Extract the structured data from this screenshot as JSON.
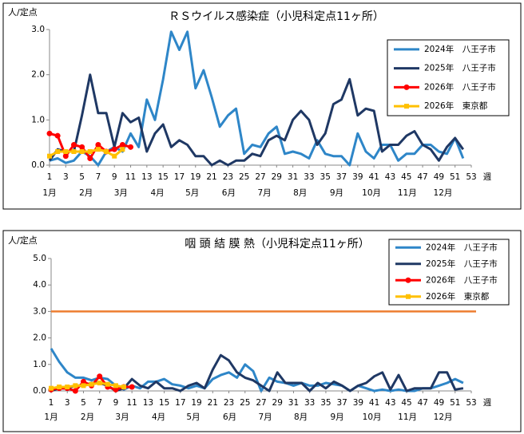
{
  "chart_data": [
    {
      "type": "line",
      "title": "ＲＳウイルス感染症（小児科定点11ヶ所）",
      "y_label": "人/定点",
      "x_label": "週",
      "x": [
        1,
        2,
        3,
        4,
        5,
        6,
        7,
        8,
        9,
        10,
        11,
        12,
        13,
        14,
        15,
        16,
        17,
        18,
        19,
        20,
        21,
        22,
        23,
        24,
        25,
        26,
        27,
        28,
        29,
        30,
        31,
        32,
        33,
        34,
        35,
        36,
        37,
        38,
        39,
        40,
        41,
        42,
        43,
        44,
        45,
        46,
        47,
        48,
        49,
        50,
        51,
        52
      ],
      "xlim": [
        1,
        53
      ],
      "xticks": [
        1,
        3,
        5,
        7,
        9,
        11,
        13,
        15,
        17,
        19,
        21,
        23,
        25,
        27,
        29,
        31,
        33,
        35,
        37,
        39,
        41,
        43,
        45,
        47,
        49,
        51,
        53
      ],
      "month_ticks": [
        {
          "value": 1,
          "label": "1月"
        },
        {
          "value": 5.5,
          "label": "2月"
        },
        {
          "value": 9.8,
          "label": "3月"
        },
        {
          "value": 14.3,
          "label": "4月"
        },
        {
          "value": 18.6,
          "label": "5月"
        },
        {
          "value": 23.1,
          "label": "6月"
        },
        {
          "value": 27.5,
          "label": "7月"
        },
        {
          "value": 31.9,
          "label": "8月"
        },
        {
          "value": 36.4,
          "label": "9月"
        },
        {
          "value": 40.7,
          "label": "10月"
        },
        {
          "value": 45.1,
          "label": "11月"
        },
        {
          "value": 49.5,
          "label": "12月"
        }
      ],
      "ylim": [
        0,
        3
      ],
      "yticks": [
        {
          "value": 0,
          "label": "0.0"
        },
        {
          "value": 1,
          "label": "1.0"
        },
        {
          "value": 2,
          "label": "2.0"
        },
        {
          "value": 3,
          "label": "3.0"
        }
      ],
      "legend": "upper right",
      "series": [
        {
          "name": "2024年　八王子市",
          "color": "#2e86c8",
          "values": [
            0.1,
            0.15,
            0.05,
            0.1,
            0.3,
            0.2,
            0.0,
            0.3,
            0.4,
            0.3,
            0.7,
            0.4,
            1.45,
            1.0,
            1.9,
            2.95,
            2.55,
            2.95,
            1.7,
            2.1,
            1.5,
            0.85,
            1.1,
            1.25,
            0.25,
            0.45,
            0.4,
            0.7,
            0.85,
            0.25,
            0.3,
            0.25,
            0.15,
            0.55,
            0.25,
            0.2,
            0.2,
            0.0,
            0.7,
            0.3,
            0.15,
            0.45,
            0.45,
            0.1,
            0.25,
            0.25,
            0.45,
            0.45,
            0.3,
            0.25,
            0.6,
            0.15
          ]
        },
        {
          "name": "2025年　八王子市",
          "color": "#1f3864",
          "values": [
            0.1,
            0.35,
            0.3,
            0.3,
            1.1,
            2.0,
            1.15,
            1.15,
            0.4,
            1.15,
            0.95,
            1.05,
            0.3,
            0.7,
            0.9,
            0.4,
            0.55,
            0.45,
            0.2,
            0.2,
            0.0,
            0.1,
            0.0,
            0.1,
            0.1,
            0.25,
            0.2,
            0.55,
            0.65,
            0.55,
            1.0,
            1.2,
            1.0,
            0.45,
            0.7,
            1.35,
            1.45,
            1.9,
            1.1,
            1.25,
            1.2,
            0.3,
            0.45,
            0.45,
            0.65,
            0.75,
            0.45,
            0.35,
            0.1,
            0.4,
            0.6,
            0.35
          ]
        },
        {
          "name": "2026年　八王子市",
          "color": "#ff0000",
          "marker": "circle",
          "values": [
            0.7,
            0.65,
            0.2,
            0.45,
            0.4,
            0.15,
            0.45,
            0.3,
            0.35,
            0.45,
            0.4,
            null,
            null,
            null,
            null,
            null,
            null,
            null,
            null,
            null,
            null,
            null,
            null,
            null,
            null,
            null,
            null,
            null,
            null,
            null,
            null,
            null,
            null,
            null,
            null,
            null,
            null,
            null,
            null,
            null,
            null,
            null,
            null,
            null,
            null,
            null,
            null,
            null,
            null,
            null,
            null,
            null
          ]
        },
        {
          "name": "2026年　東京都",
          "color": "#ffc000",
          "marker": "square",
          "values": [
            0.2,
            0.3,
            0.3,
            0.3,
            0.3,
            0.3,
            0.35,
            0.3,
            0.2,
            0.35,
            null,
            null,
            null,
            null,
            null,
            null,
            null,
            null,
            null,
            null,
            null,
            null,
            null,
            null,
            null,
            null,
            null,
            null,
            null,
            null,
            null,
            null,
            null,
            null,
            null,
            null,
            null,
            null,
            null,
            null,
            null,
            null,
            null,
            null,
            null,
            null,
            null,
            null,
            null,
            null,
            null,
            null
          ]
        }
      ]
    },
    {
      "type": "line",
      "title": "咽 頭 結 膜 熱（小児科定点11ヶ所）",
      "y_label": "人/定点",
      "x_label": "週",
      "x": [
        1,
        2,
        3,
        4,
        5,
        6,
        7,
        8,
        9,
        10,
        11,
        12,
        13,
        14,
        15,
        16,
        17,
        18,
        19,
        20,
        21,
        22,
        23,
        24,
        25,
        26,
        27,
        28,
        29,
        30,
        31,
        32,
        33,
        34,
        35,
        36,
        37,
        38,
        39,
        40,
        41,
        42,
        43,
        44,
        45,
        46,
        47,
        48,
        49,
        50,
        51,
        52
      ],
      "xlim": [
        1,
        53
      ],
      "xticks": [
        1,
        3,
        5,
        7,
        9,
        11,
        13,
        15,
        17,
        19,
        21,
        23,
        25,
        27,
        29,
        31,
        33,
        35,
        37,
        39,
        41,
        43,
        45,
        47,
        49,
        51,
        53
      ],
      "month_ticks": [
        {
          "value": 1,
          "label": "1月"
        },
        {
          "value": 5.5,
          "label": "2月"
        },
        {
          "value": 9.8,
          "label": "3月"
        },
        {
          "value": 14.3,
          "label": "4月"
        },
        {
          "value": 18.6,
          "label": "5月"
        },
        {
          "value": 23.1,
          "label": "6月"
        },
        {
          "value": 27.5,
          "label": "7月"
        },
        {
          "value": 31.9,
          "label": "8月"
        },
        {
          "value": 36.4,
          "label": "9月"
        },
        {
          "value": 40.7,
          "label": "10月"
        },
        {
          "value": 45.1,
          "label": "11月"
        },
        {
          "value": 49.5,
          "label": "12月"
        }
      ],
      "ylim": [
        0,
        5
      ],
      "yticks": [
        {
          "value": 0,
          "label": "0.0"
        },
        {
          "value": 1,
          "label": "1.0"
        },
        {
          "value": 2,
          "label": "2.0"
        },
        {
          "value": 3,
          "label": "3.0"
        },
        {
          "value": 4,
          "label": "4.0"
        },
        {
          "value": 5,
          "label": "5.0"
        }
      ],
      "reference_line": {
        "value": 3,
        "color": "#ed7d31"
      },
      "legend": "upper right",
      "series": [
        {
          "name": "2024年　八王子市",
          "color": "#2e86c8",
          "values": [
            1.6,
            1.1,
            0.7,
            0.5,
            0.5,
            0.4,
            0.5,
            0.45,
            0.2,
            0.05,
            0.2,
            0.1,
            0.35,
            0.35,
            0.45,
            0.25,
            0.2,
            0.1,
            0.2,
            0.1,
            0.45,
            0.6,
            0.7,
            0.5,
            1.0,
            0.75,
            0.0,
            0.5,
            0.35,
            0.3,
            0.2,
            0.3,
            0.2,
            0.2,
            0.3,
            0.25,
            0.2,
            0.0,
            0.2,
            0.1,
            0.0,
            0.05,
            0.0,
            0.05,
            0.0,
            0.0,
            0.1,
            0.1,
            0.2,
            0.3,
            0.45,
            0.3
          ]
        },
        {
          "name": "2025年　八王子市",
          "color": "#1f3864",
          "values": [
            0.0,
            0.1,
            0.1,
            0.2,
            0.2,
            0.3,
            0.3,
            0.2,
            0.0,
            0.1,
            0.45,
            0.2,
            0.1,
            0.35,
            0.1,
            0.1,
            0.0,
            0.2,
            0.3,
            0.1,
            0.8,
            1.35,
            1.15,
            0.7,
            0.5,
            0.4,
            0.2,
            0.0,
            0.7,
            0.3,
            0.3,
            0.3,
            0.0,
            0.3,
            0.1,
            0.35,
            0.2,
            0.0,
            0.2,
            0.3,
            0.55,
            0.7,
            0.05,
            0.6,
            0.0,
            0.1,
            0.1,
            0.1,
            0.7,
            0.7,
            0.05,
            0.1
          ]
        },
        {
          "name": "2026年　八王子市",
          "color": "#ff0000",
          "marker": "circle",
          "values": [
            0.05,
            0.1,
            0.1,
            0.0,
            0.35,
            0.2,
            0.55,
            0.15,
            0.05,
            0.15,
            0.15,
            null,
            null,
            null,
            null,
            null,
            null,
            null,
            null,
            null,
            null,
            null,
            null,
            null,
            null,
            null,
            null,
            null,
            null,
            null,
            null,
            null,
            null,
            null,
            null,
            null,
            null,
            null,
            null,
            null,
            null,
            null,
            null,
            null,
            null,
            null,
            null,
            null,
            null,
            null,
            null,
            null
          ]
        },
        {
          "name": "2026年　東京都",
          "color": "#ffc000",
          "marker": "square",
          "values": [
            0.1,
            0.15,
            0.15,
            0.2,
            0.2,
            0.25,
            0.3,
            0.25,
            0.2,
            0.15,
            null,
            null,
            null,
            null,
            null,
            null,
            null,
            null,
            null,
            null,
            null,
            null,
            null,
            null,
            null,
            null,
            null,
            null,
            null,
            null,
            null,
            null,
            null,
            null,
            null,
            null,
            null,
            null,
            null,
            null,
            null,
            null,
            null,
            null,
            null,
            null,
            null,
            null,
            null,
            null,
            null,
            null
          ]
        }
      ]
    }
  ]
}
